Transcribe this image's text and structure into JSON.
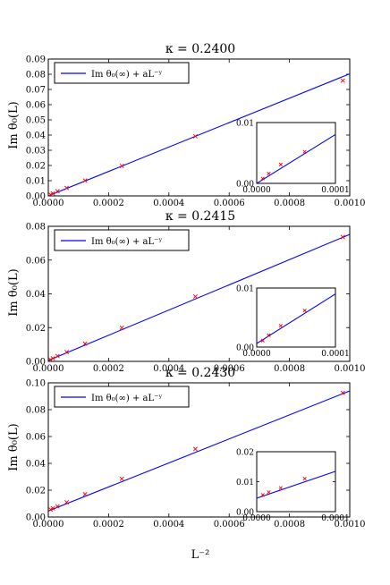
{
  "figure": {
    "x_axis_label": "L⁻²"
  },
  "chart_data": [
    {
      "type": "scatter",
      "title": "κ = 0.2400",
      "ylabel": "Im θ₀(L)",
      "xlabel": "",
      "xlim": [
        0,
        0.001
      ],
      "ylim": [
        0,
        0.09
      ],
      "x_ticks": [
        "0.0000",
        "0.0002",
        "0.0004",
        "0.0006",
        "0.0008",
        "0.0010"
      ],
      "y_ticks": [
        "0.00",
        "0.01",
        "0.02",
        "0.03",
        "0.04",
        "0.05",
        "0.06",
        "0.07",
        "0.08",
        "0.09"
      ],
      "legend": {
        "label": "Im θ₀(∞) + aL⁻ʸ",
        "placement": "top-left"
      },
      "grid": false,
      "series": [
        {
          "kind": "points",
          "color": "#ff0000",
          "x": [
            7.7e-06,
            1.53e-05,
            3.05e-05,
            6.1e-05,
            0.000122,
            0.000244,
            0.000488,
            0.000977
          ],
          "y": [
            0.0008,
            0.0016,
            0.0031,
            0.0052,
            0.0101,
            0.0197,
            0.0392,
            0.0758
          ]
        },
        {
          "kind": "fit-line",
          "color": "#0000ff",
          "x": [
            0,
            0.001
          ],
          "y": [
            0.0,
            0.0803
          ]
        }
      ],
      "inset": {
        "xlim": [
          0,
          0.0001
        ],
        "ylim": [
          0,
          0.01
        ],
        "x_ticks": [
          "0.0000",
          "0.0001"
        ],
        "y_ticks": [
          "0.00",
          "0.01"
        ]
      }
    },
    {
      "type": "scatter",
      "title": "κ = 0.2415",
      "ylabel": "Im θ₀(L)",
      "xlabel": "",
      "xlim": [
        0,
        0.001
      ],
      "ylim": [
        0,
        0.09
      ],
      "x_ticks": [
        "0.0000",
        "0.0002",
        "0.0004",
        "0.0006",
        "0.0008",
        "0.0010"
      ],
      "y_ticks": [
        "0.00",
        "0.02",
        "0.04",
        "0.06",
        "0.08"
      ],
      "legend": {
        "label": "Im θ₀(∞) + aL⁻ʸ",
        "placement": "top-left"
      },
      "grid": false,
      "series": [
        {
          "kind": "points",
          "color": "#ff0000",
          "x": [
            7.7e-06,
            1.53e-05,
            3.05e-05,
            6.1e-05,
            0.000122,
            0.000244,
            0.000488,
            0.000977
          ],
          "y": [
            0.0011,
            0.002,
            0.0036,
            0.0062,
            0.0118,
            0.0224,
            0.0432,
            0.0828
          ]
        },
        {
          "kind": "fit-line",
          "color": "#0000ff",
          "x": [
            0,
            0.001
          ],
          "y": [
            0.0006,
            0.0846
          ]
        }
      ],
      "inset": {
        "xlim": [
          0,
          0.0001
        ],
        "ylim": [
          0,
          0.01
        ],
        "x_ticks": [
          "0.0000",
          "0.0001"
        ],
        "y_ticks": [
          "0.00",
          "0.01"
        ]
      }
    },
    {
      "type": "scatter",
      "title": "κ = 0.2430",
      "ylabel": "Im θ₀(L)",
      "xlabel": "L⁻²",
      "xlim": [
        0,
        0.001
      ],
      "ylim": [
        0,
        0.1
      ],
      "x_ticks": [
        "0.0000",
        "0.0002",
        "0.0004",
        "0.0006",
        "0.0008",
        "0.0010"
      ],
      "y_ticks": [
        "0.00",
        "0.02",
        "0.04",
        "0.06",
        "0.08",
        "0.10"
      ],
      "legend": {
        "label": "Im θ₀(∞) + aL⁻ʸ",
        "placement": "top-left"
      },
      "grid": false,
      "series": [
        {
          "kind": "points",
          "color": "#ff0000",
          "x": [
            7.7e-06,
            1.53e-05,
            3.05e-05,
            6.1e-05,
            0.000122,
            0.000244,
            0.000488,
            0.000977
          ],
          "y": [
            0.0056,
            0.0065,
            0.0079,
            0.011,
            0.017,
            0.0285,
            0.0507,
            0.0925
          ]
        },
        {
          "kind": "fit-line",
          "color": "#0000ff",
          "x": [
            0,
            0.001
          ],
          "y": [
            0.0045,
            0.094
          ]
        }
      ],
      "inset": {
        "xlim": [
          0,
          0.0001
        ],
        "ylim": [
          0,
          0.02
        ],
        "x_ticks": [
          "0.0000",
          "0.0001"
        ],
        "y_ticks": [
          "0.00",
          "0.01",
          "0.02"
        ]
      }
    }
  ]
}
